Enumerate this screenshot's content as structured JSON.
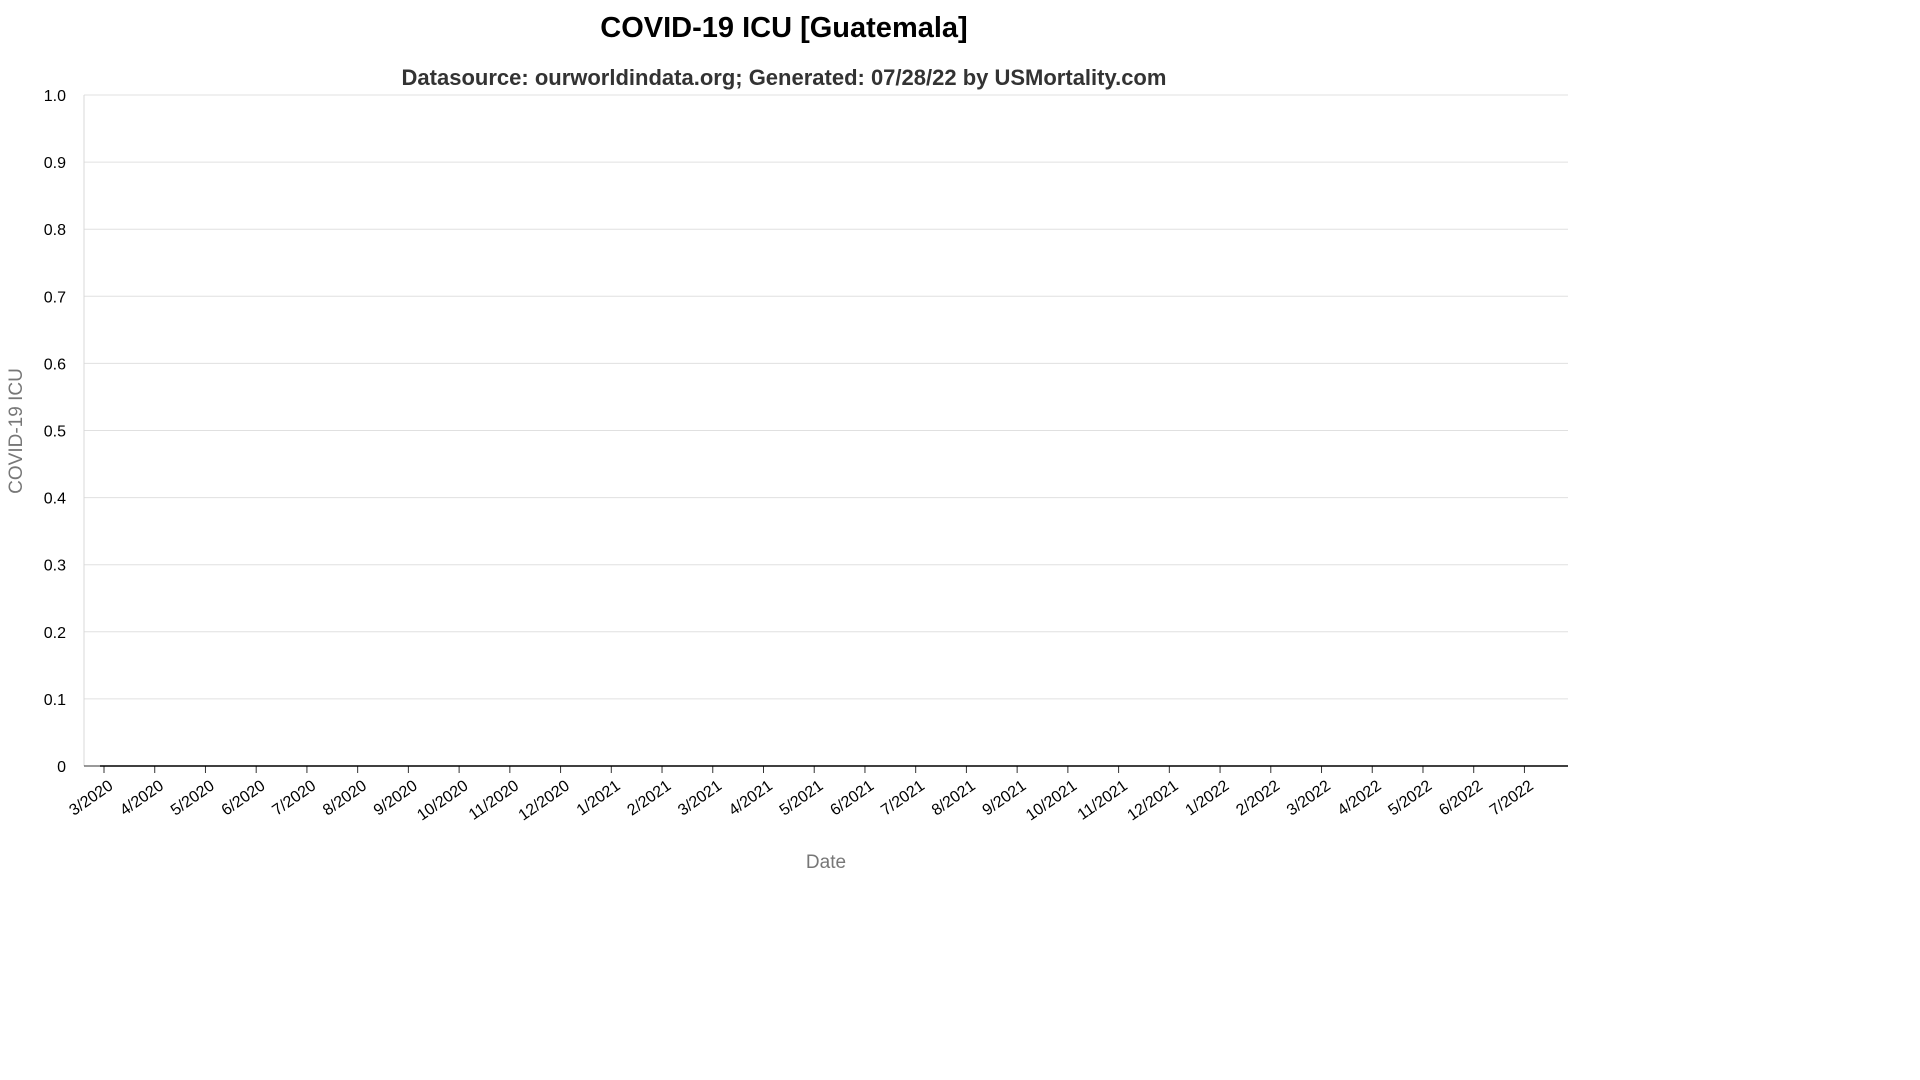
{
  "chart_data": {
    "type": "line",
    "title": "COVID-19 ICU [Guatemala]",
    "subtitle": "Datasource: ourworldindata.org; Generated: 07/28/22 by USMortality.com",
    "xlabel": "Date",
    "ylabel": "COVID-19 ICU",
    "x_ticks": [
      "3/2020",
      "4/2020",
      "5/2020",
      "6/2020",
      "7/2020",
      "8/2020",
      "9/2020",
      "10/2020",
      "11/2020",
      "12/2020",
      "1/2021",
      "2/2021",
      "3/2021",
      "4/2021",
      "5/2021",
      "6/2021",
      "7/2021",
      "8/2021",
      "9/2021",
      "10/2021",
      "11/2021",
      "12/2021",
      "1/2022",
      "2/2022",
      "3/2022",
      "4/2022",
      "5/2022",
      "6/2022",
      "7/2022"
    ],
    "y_ticks": [
      "0",
      "0.1",
      "0.2",
      "0.3",
      "0.4",
      "0.5",
      "0.6",
      "0.7",
      "0.8",
      "0.9",
      "1.0"
    ],
    "ylim": [
      0,
      1
    ],
    "grid": true,
    "series": [
      {
        "x": [
          "3/2020",
          "7/2022"
        ],
        "values": [
          0,
          0
        ],
        "color": "#000000"
      }
    ]
  }
}
